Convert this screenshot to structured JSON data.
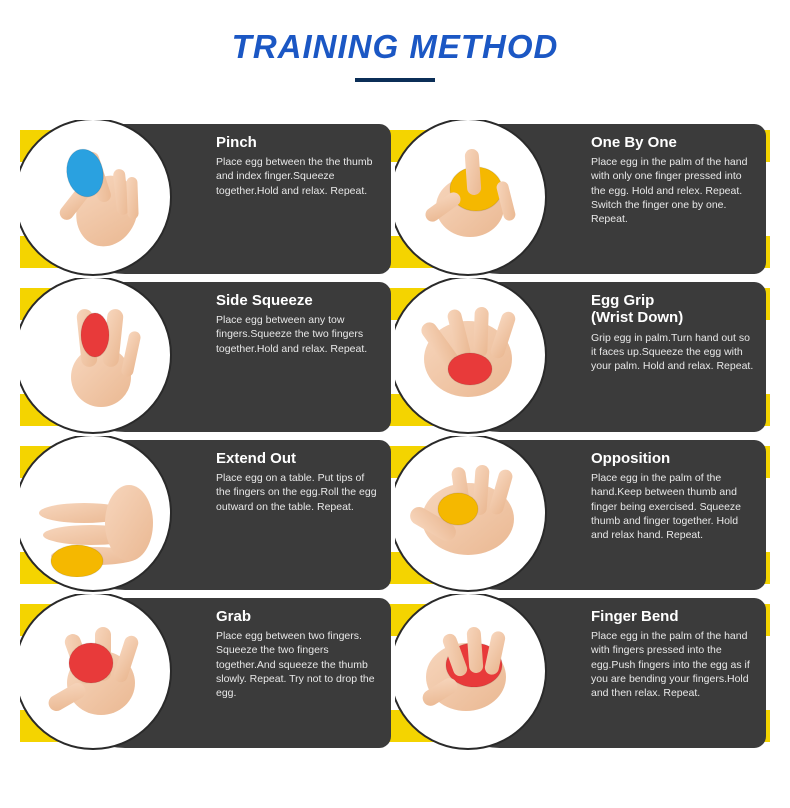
{
  "colors": {
    "title": "#1b57c4",
    "underline": "#0b2e57",
    "stripe": "#f4d400",
    "bubble": "#3b3b3b",
    "circle_border": "#2a2a2a",
    "bg": "#ffffff",
    "skin1": "#f7d6bd",
    "skin2": "#eab892",
    "egg_blue": "#2aa1e0",
    "egg_yellow": "#f5b800",
    "egg_red": "#e83a3a",
    "egg_orange": "#f08a2a"
  },
  "header": {
    "title": "TRAINING METHOD"
  },
  "exercises": [
    {
      "title": "Pinch",
      "desc": "Place egg between the the thumb and index finger.Squeeze together.Hold and relax. Repeat.",
      "egg_color": "#2aa1e0",
      "pose": "pinch"
    },
    {
      "title": "One By One",
      "desc": "Place egg in the palm of the hand with only one finger pressed into the egg. Hold and relex. Repeat. Switch the finger one by one. Repeat.",
      "egg_color": "#f5b800",
      "pose": "onebyone"
    },
    {
      "title": "Side Squeeze",
      "desc": "Place egg between any tow fingers.Squeeze the two fingers together.Hold and relax. Repeat.",
      "egg_color": "#e83a3a",
      "pose": "sidesqueeze"
    },
    {
      "title": "Egg Grip\n(Wrist Down)",
      "desc": "Grip egg in palm.Turn hand out so it faces up.Squeeze the egg with your palm. Hold and relax. Repeat.",
      "egg_color": "#e83a3a",
      "pose": "egggrip"
    },
    {
      "title": "Extend Out",
      "desc": "Place egg on a table. Put tips of the fingers on the egg.Roll the egg outward on the table. Repeat.",
      "egg_color": "#f5b800",
      "pose": "extend"
    },
    {
      "title": "Opposition",
      "desc": "Place egg in the palm of the hand.Keep between thumb and finger being exercised. Squeeze thumb and finger together. Hold and relax hand. Repeat.",
      "egg_color": "#f5b800",
      "pose": "opposition"
    },
    {
      "title": "Grab",
      "desc": "Place egg between two fingers. Squeeze the two fingers together.And squeeze the thumb slowly. Repeat. Try not to drop the egg.",
      "egg_color": "#e83a3a",
      "pose": "grab"
    },
    {
      "title": "Finger Bend",
      "desc": "Place egg in the palm of the hand with fingers pressed into the egg.Push fingers into the egg as if you are bending your fingers.Hold and then relax. Repeat.",
      "egg_color": "#e83a3a",
      "pose": "fingerbend"
    }
  ]
}
